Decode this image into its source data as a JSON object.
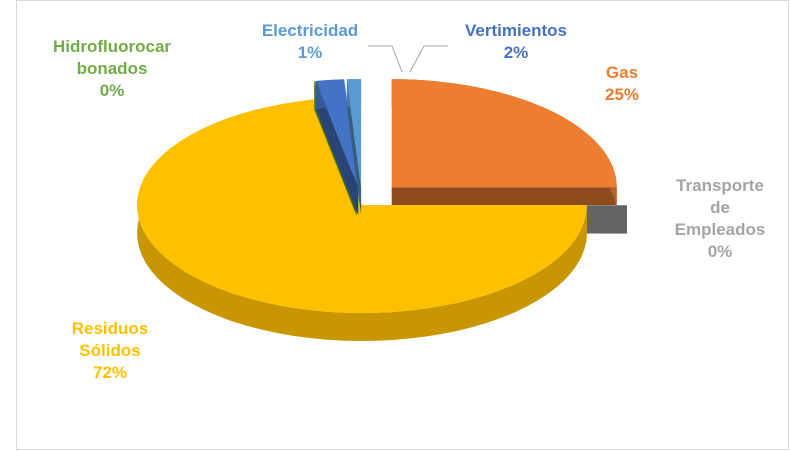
{
  "chart_data": {
    "type": "pie",
    "categories": [
      "Gas",
      "Transporte de Empleados",
      "Residuos Sólidos",
      "Hidrofluorocarbonados",
      "Vertimientos",
      "Electricidad"
    ],
    "values": [
      25,
      0,
      72,
      0,
      2,
      1
    ],
    "value_labels": [
      "25%",
      "0%",
      "72%",
      "0%",
      "2%",
      "1%"
    ],
    "colors": [
      "#ed7d31",
      "#a5a5a5",
      "#ffc000",
      "#70ad47",
      "#4472c4",
      "#5b9bd5"
    ]
  }
}
